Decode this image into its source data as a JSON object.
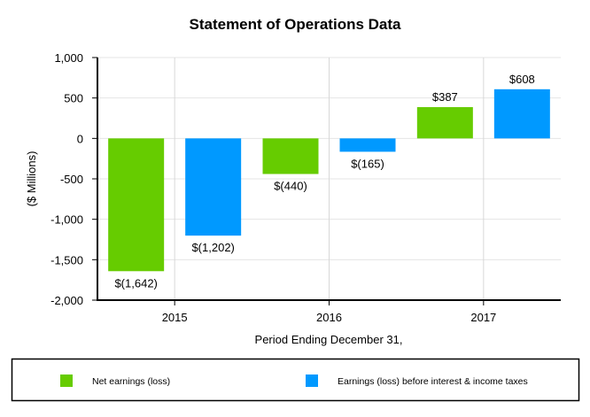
{
  "chart_data": {
    "type": "bar",
    "title": "Statement of Operations Data",
    "xlabel": "Period Ending December 31,",
    "ylabel": "($ Millions)",
    "categories": [
      "2015",
      "2016",
      "2017"
    ],
    "ylim": [
      -2000,
      1000
    ],
    "yticks": [
      1000,
      500,
      0,
      -500,
      -1000,
      -1500,
      -2000
    ],
    "ytick_labels": [
      "1,000",
      "500",
      "0",
      "-500",
      "-1,000",
      "-1,500",
      "-2,000"
    ],
    "grid": true,
    "legend_position": "bottom",
    "series": [
      {
        "name": "Net earnings (loss)",
        "color": "#66cc00",
        "values": [
          -1642,
          -440,
          387
        ],
        "labels": [
          "$(1,642)",
          "$(440)",
          "$387"
        ]
      },
      {
        "name": "Earnings (loss) before interest & income taxes",
        "color": "#0099ff",
        "values": [
          -1202,
          -165,
          608
        ],
        "labels": [
          "$(1,202)",
          "$(165)",
          "$608"
        ]
      }
    ]
  }
}
